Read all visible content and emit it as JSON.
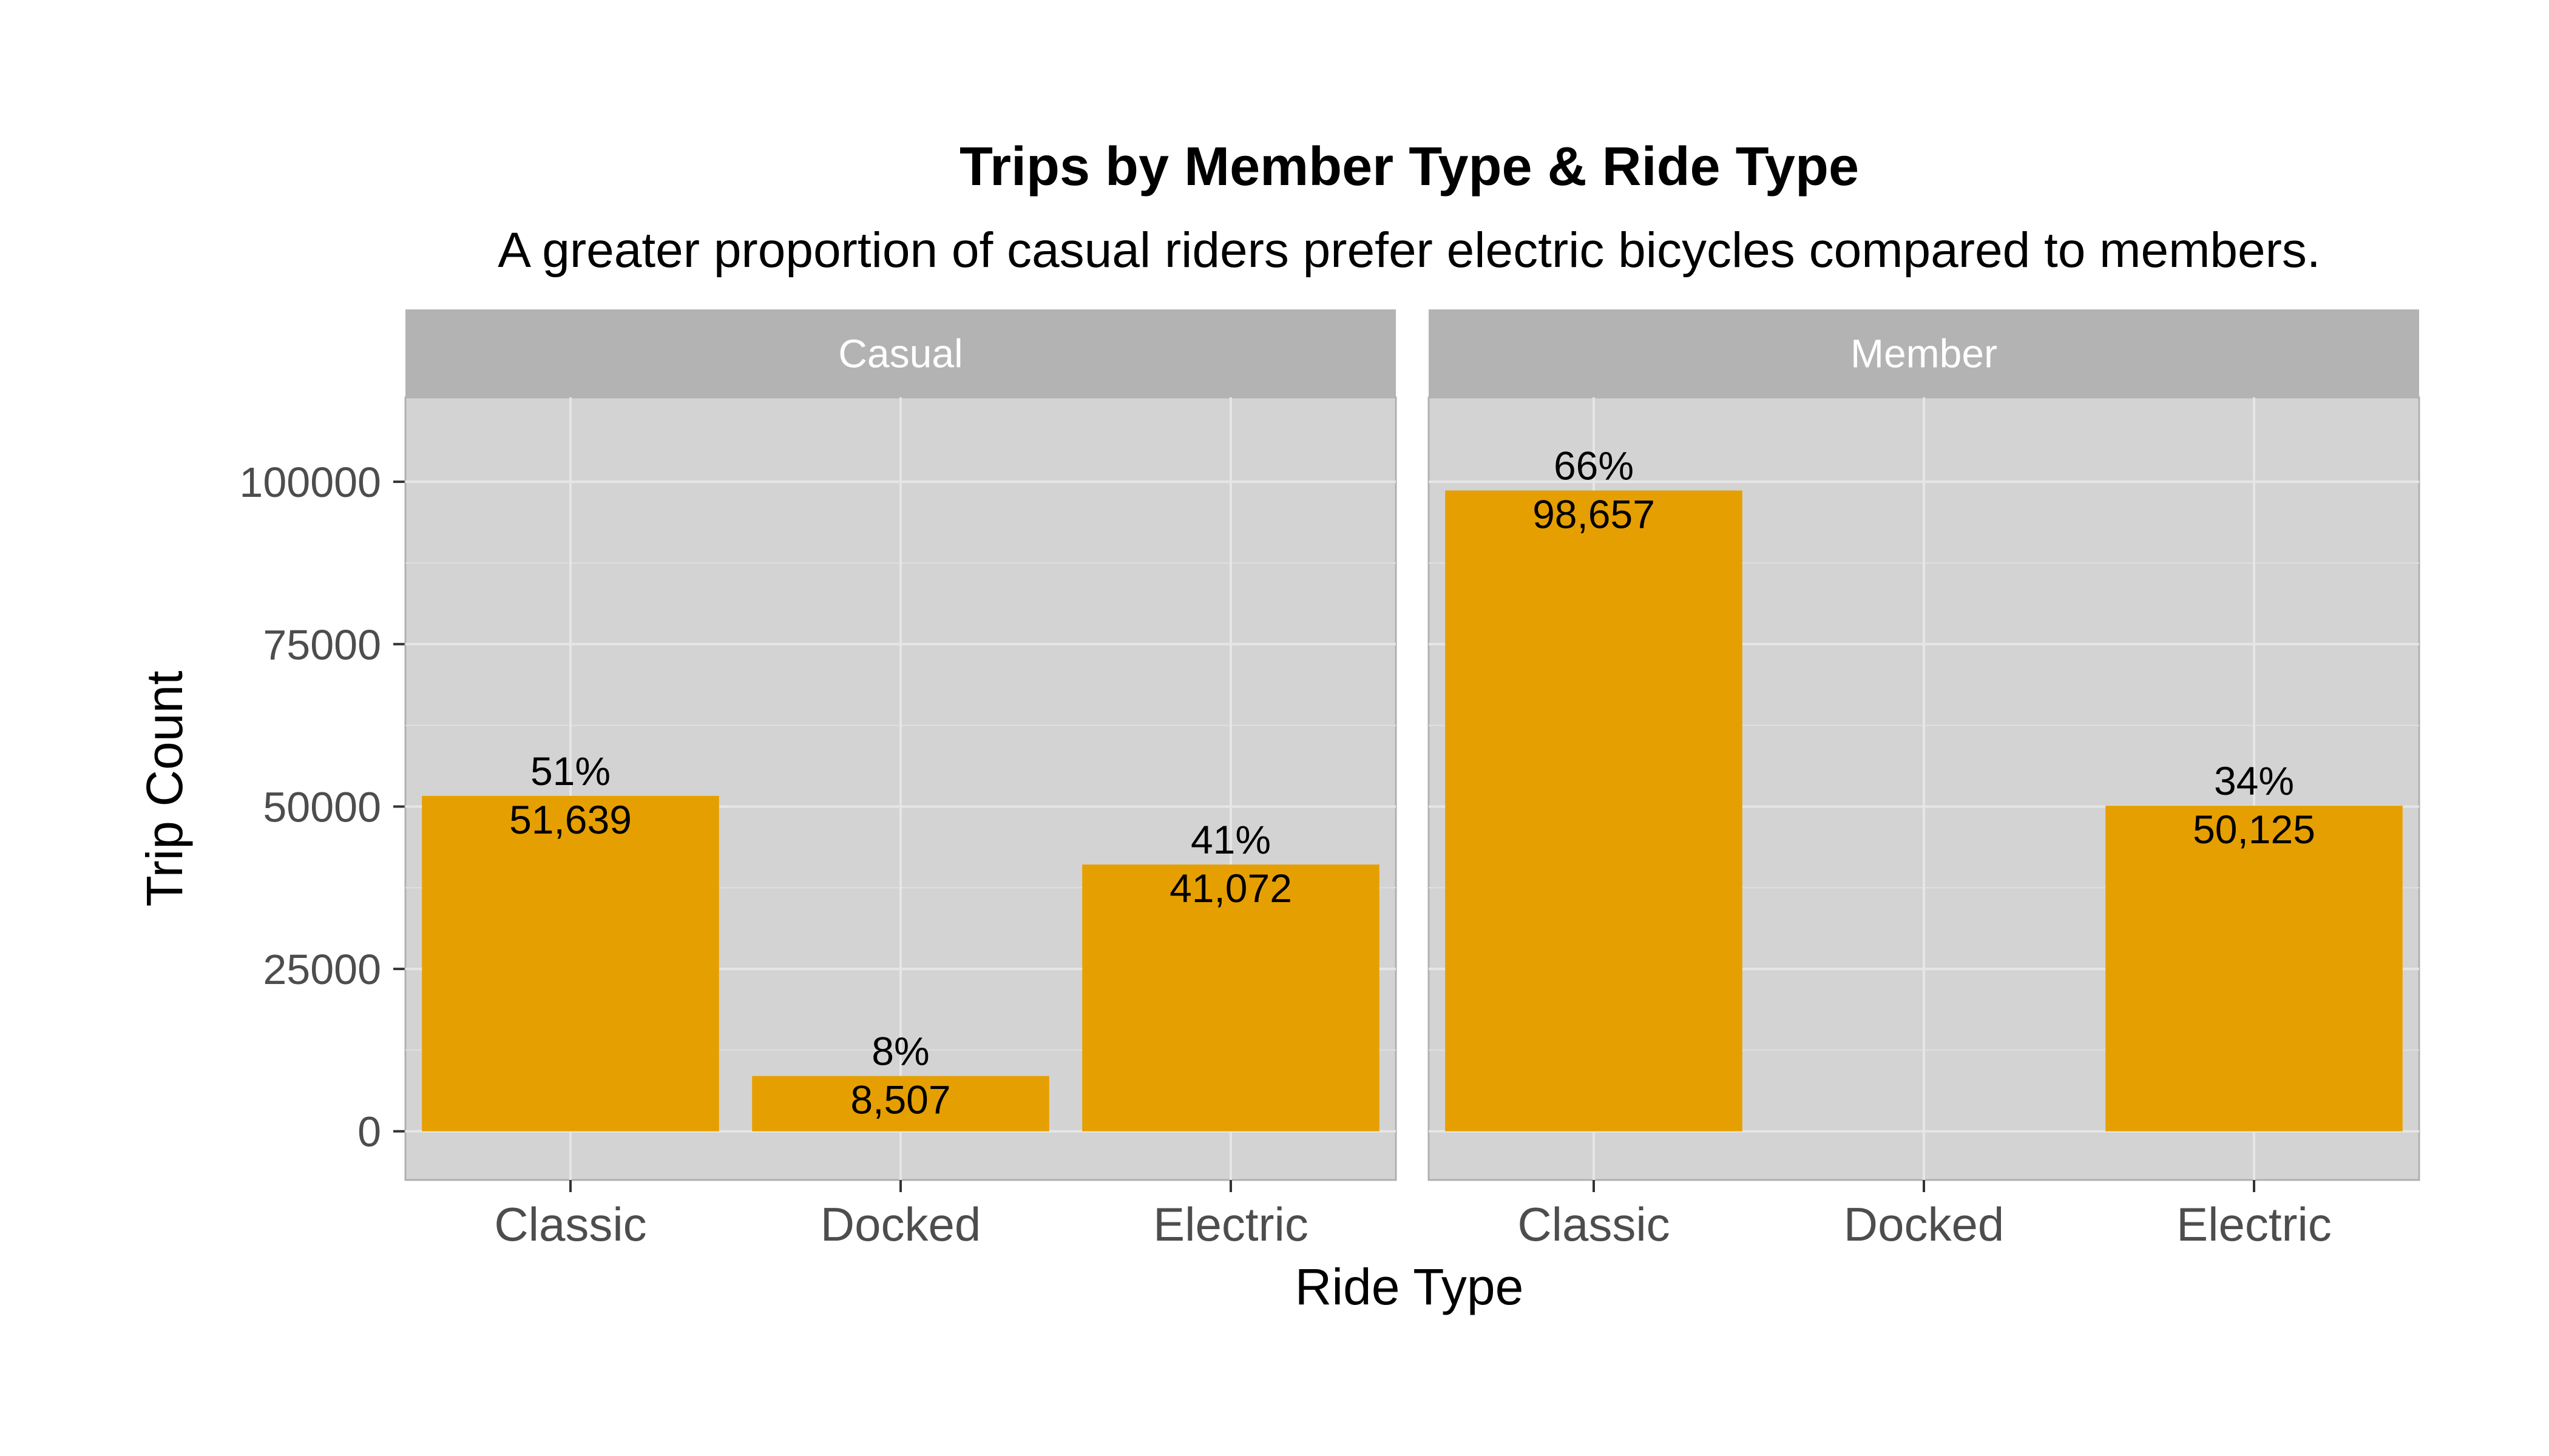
{
  "chart_data": {
    "type": "bar",
    "title": "Trips by Member Type & Ride Type",
    "subtitle": "A greater proportion of casual riders prefer electric bicycles compared to members.",
    "xlabel": "Ride Type",
    "ylabel": "Trip Count",
    "categories": [
      "Classic",
      "Docked",
      "Electric"
    ],
    "ylim": [
      -7500,
      113000
    ],
    "yticks": [
      0,
      25000,
      50000,
      75000,
      100000
    ],
    "ytick_labels": [
      "0",
      "25000",
      "50000",
      "75000",
      "100000"
    ],
    "grid": true,
    "bar_color": "#E69F00",
    "panel_bg": "#D3D3D3",
    "strip_bg": "#B3B3B3",
    "panels": [
      {
        "name": "Casual",
        "values": [
          51639,
          8507,
          41072
        ],
        "pct_labels": [
          "51%",
          "8%",
          "41%"
        ],
        "count_labels": [
          "51,639",
          "8,507",
          "41,072"
        ]
      },
      {
        "name": "Member",
        "values": [
          98657,
          null,
          50125
        ],
        "pct_labels": [
          "66%",
          "",
          "34%"
        ],
        "count_labels": [
          "98,657",
          "",
          "50,125"
        ]
      }
    ]
  }
}
